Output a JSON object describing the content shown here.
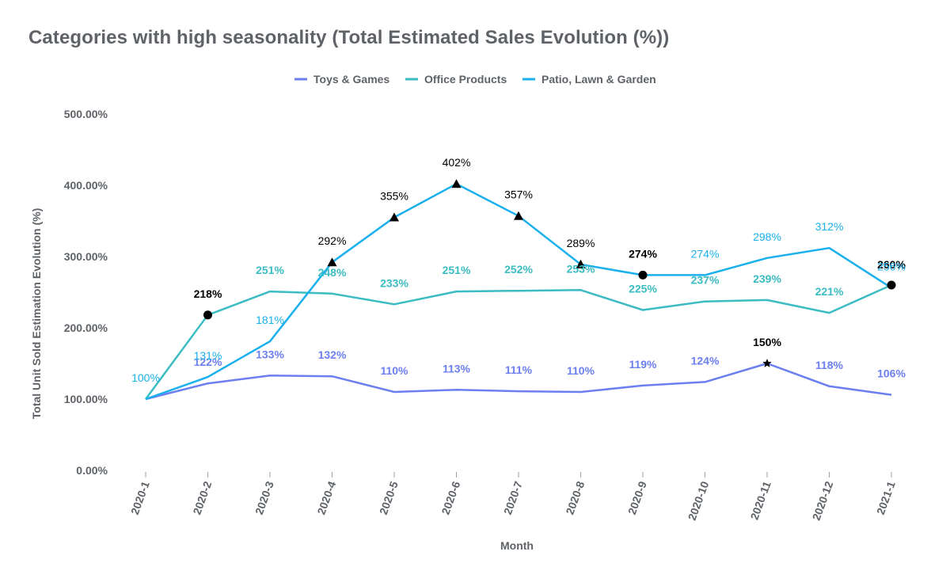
{
  "chart_data": {
    "type": "line",
    "title": "Categories with high seasonality (Total Estimated Sales Evolution (%))",
    "xlabel": "Month",
    "ylabel": "Total Unit Sold Estimation Evolution (%)",
    "ylim": [
      0,
      500
    ],
    "yticks": [
      "0.00%",
      "100.00%",
      "200.00%",
      "300.00%",
      "400.00%",
      "500.00%"
    ],
    "grid": false,
    "legend_position": "top",
    "categories": [
      "2020-1",
      "2020-2",
      "2020-3",
      "2020-4",
      "2020-5",
      "2020-6",
      "2020-7",
      "2020-8",
      "2020-9",
      "2020-10",
      "2020-11",
      "2020-12",
      "2021-1"
    ],
    "series": [
      {
        "name": "Toys & Games",
        "color": "#6c7ff0",
        "values": [
          100,
          122,
          133,
          132,
          110,
          113,
          111,
          110,
          119,
          124,
          150,
          118,
          106
        ],
        "labels": [
          "",
          "122%",
          "133%",
          "132%",
          "110%",
          "113%",
          "111%",
          "110%",
          "119%",
          "124%",
          "150%",
          "118%",
          "106%"
        ]
      },
      {
        "name": "Office Products",
        "color": "#3bbcc2",
        "values": [
          100,
          218,
          251,
          248,
          233,
          251,
          252,
          253,
          225,
          237,
          239,
          221,
          260
        ],
        "labels": [
          "",
          "218%",
          "251%",
          "248%",
          "233%",
          "251%",
          "252%",
          "253%",
          "225%",
          "237%",
          "239%",
          "221%",
          "260%"
        ]
      },
      {
        "name": "Patio, Lawn & Garden",
        "color": "#1ab0ee",
        "values": [
          100,
          131,
          181,
          292,
          355,
          402,
          357,
          289,
          274,
          274,
          298,
          312,
          256
        ],
        "labels": [
          "100%",
          "131%",
          "181%",
          "292%",
          "355%",
          "402%",
          "357%",
          "289%",
          "274%",
          "274%",
          "298%",
          "312%",
          "256%"
        ]
      }
    ]
  }
}
